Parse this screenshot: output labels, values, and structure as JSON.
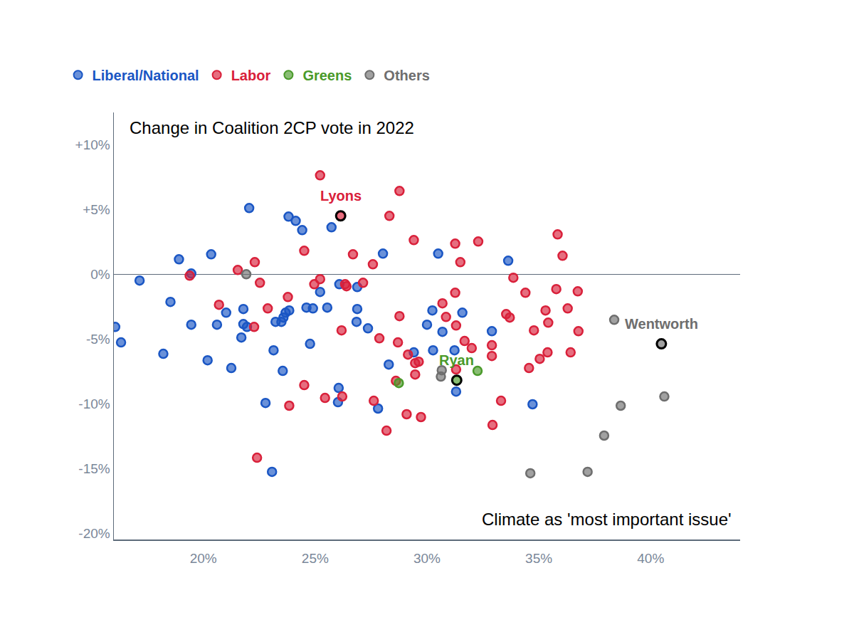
{
  "chart_data": {
    "type": "scatter",
    "title": "Change in Coalition 2CP vote in 2022",
    "x_label": "Climate as 'most important issue'",
    "xlim": [
      16,
      44
    ],
    "xticks": [
      {
        "value": 20,
        "label": "20%"
      },
      {
        "value": 25,
        "label": "25%"
      },
      {
        "value": 30,
        "label": "30%"
      },
      {
        "value": 35,
        "label": "35%"
      },
      {
        "value": 40,
        "label": "40%"
      }
    ],
    "ylim": [
      -20.5,
      12.5
    ],
    "yticks": [
      {
        "value": -20,
        "label": "-20%"
      },
      {
        "value": -15,
        "label": "-15%"
      },
      {
        "value": -10,
        "label": "-10%"
      },
      {
        "value": -5,
        "label": "-5%"
      },
      {
        "value": 0,
        "label": "0%"
      },
      {
        "value": 5,
        "label": "+5%"
      },
      {
        "value": 10,
        "label": "+10%"
      }
    ],
    "grid": false,
    "legend": "top left",
    "marker": "circle",
    "series": [
      {
        "name": "Liberal/National",
        "color": "#1a56c4",
        "x": [
          16.06,
          16.32,
          17.15,
          18.53,
          18.21,
          18.91,
          19.46,
          19.46,
          20.35,
          20.19,
          20.61,
          21.02,
          21.25,
          21.79,
          21.79,
          21.7,
          21.95,
          22.05,
          22.78,
          23.07,
          23.14,
          23.23,
          23.49,
          23.58,
          23.68,
          23.55,
          23.84,
          23.81,
          24.13,
          24.42,
          24.61,
          24.9,
          24.77,
          25.22,
          25.54,
          25.73,
          26.08,
          26.05,
          26.02,
          26.88,
          26.88,
          26.85,
          27.36,
          28.03,
          27.81,
          28.29,
          30.0,
          29.41,
          30.24,
          30.5,
          30.27,
          30.69,
          31.23,
          31.58,
          31.3,
          32.9,
          33.63,
          34.72
        ],
        "values": [
          -4.07,
          -5.27,
          -0.49,
          -2.14,
          -6.15,
          1.15,
          0.05,
          -3.9,
          1.54,
          -6.65,
          -3.9,
          -2.97,
          -7.25,
          -2.69,
          -3.85,
          -4.89,
          -4.07,
          5.11,
          -9.95,
          -15.27,
          -5.88,
          -3.68,
          -3.68,
          -3.35,
          -2.97,
          -7.47,
          -2.8,
          4.45,
          4.12,
          3.41,
          -2.58,
          -2.64,
          -5.38,
          -1.37,
          -2.58,
          3.63,
          -0.77,
          -8.79,
          -9.89,
          -0.99,
          -2.69,
          -3.68,
          -4.18,
          1.59,
          -10.38,
          -6.98,
          -3.9,
          -6.04,
          -2.8,
          1.59,
          -5.88,
          -4.45,
          -5.88,
          -2.97,
          -9.07,
          -4.4,
          1.04,
          -10.05
        ]
      },
      {
        "name": "Labor",
        "color": "#d9203a",
        "x": [
          19.39,
          22.3,
          21.54,
          20.7,
          22.27,
          22.53,
          22.88,
          22.4,
          23.78,
          23.84,
          24.51,
          24.51,
          24.96,
          25.22,
          25.22,
          25.44,
          26.18,
          26.21,
          26.34,
          26.4,
          26.69,
          27.14,
          27.58,
          27.62,
          27.87,
          28.19,
          28.32,
          28.77,
          28.77,
          28.7,
          28.61,
          29.15,
          29.09,
          29.41,
          29.47,
          29.63,
          29.47,
          29.73,
          30.69,
          30.85,
          31.26,
          31.3,
          31.26,
          31.49,
          31.68,
          32.0,
          31.3,
          32.29,
          32.9,
          32.9,
          32.93,
          33.31,
          33.54,
          33.7,
          33.86,
          34.4,
          34.56,
          34.78,
          35.04,
          35.3,
          35.42,
          35.39,
          35.78,
          35.84,
          36.06,
          36.29,
          36.42,
          36.74,
          36.77,
          26.14
        ],
        "values": [
          -0.11,
          0.93,
          0.33,
          -2.36,
          -4.07,
          -0.66,
          -2.64,
          -14.18,
          -1.76,
          -10.16,
          1.81,
          -8.57,
          -0.77,
          -0.38,
          7.64,
          -9.56,
          -4.34,
          -9.45,
          -0.77,
          -0.93,
          1.54,
          -0.66,
          0.77,
          -9.78,
          -4.95,
          -12.09,
          4.51,
          6.43,
          -3.24,
          -5.27,
          -8.24,
          -6.21,
          -10.82,
          2.64,
          -6.87,
          -6.76,
          -7.75,
          -11.04,
          -2.25,
          -3.3,
          -1.43,
          -3.96,
          2.36,
          0.93,
          -5.16,
          -5.71,
          -7.36,
          2.53,
          -5.49,
          -6.32,
          -11.65,
          -9.78,
          -3.08,
          -3.35,
          -0.27,
          -1.43,
          -7.25,
          -4.34,
          -6.54,
          -2.8,
          -3.74,
          -6.04,
          -1.15,
          3.08,
          1.43,
          -2.64,
          -6.04,
          -1.32,
          -4.4,
          4.51
        ]
      },
      {
        "name": "Greens",
        "color": "#4a9a2a",
        "x": [
          28.74,
          32.26,
          31.33
        ],
        "values": [
          -8.41,
          -7.47,
          -8.19
        ]
      },
      {
        "name": "Others",
        "color": "#6e6e6e",
        "x": [
          21.92,
          30.66,
          30.62,
          34.62,
          37.18,
          37.92,
          38.66,
          40.61,
          38.37,
          40.48
        ],
        "values": [
          0.0,
          -7.42,
          -7.91,
          -15.38,
          -15.27,
          -12.47,
          -10.16,
          -9.45,
          -3.52,
          -5.38
        ]
      }
    ],
    "annotations": [
      {
        "text": "Lyons",
        "x": 26.14,
        "y": 4.51,
        "color": "#d9203a"
      },
      {
        "text": "Ryan",
        "x": 31.33,
        "y": -8.19,
        "color": "#4a9a2a"
      },
      {
        "text": "Wentworth",
        "x": 40.48,
        "y": -5.38,
        "color": "#6e6e6e"
      }
    ]
  }
}
